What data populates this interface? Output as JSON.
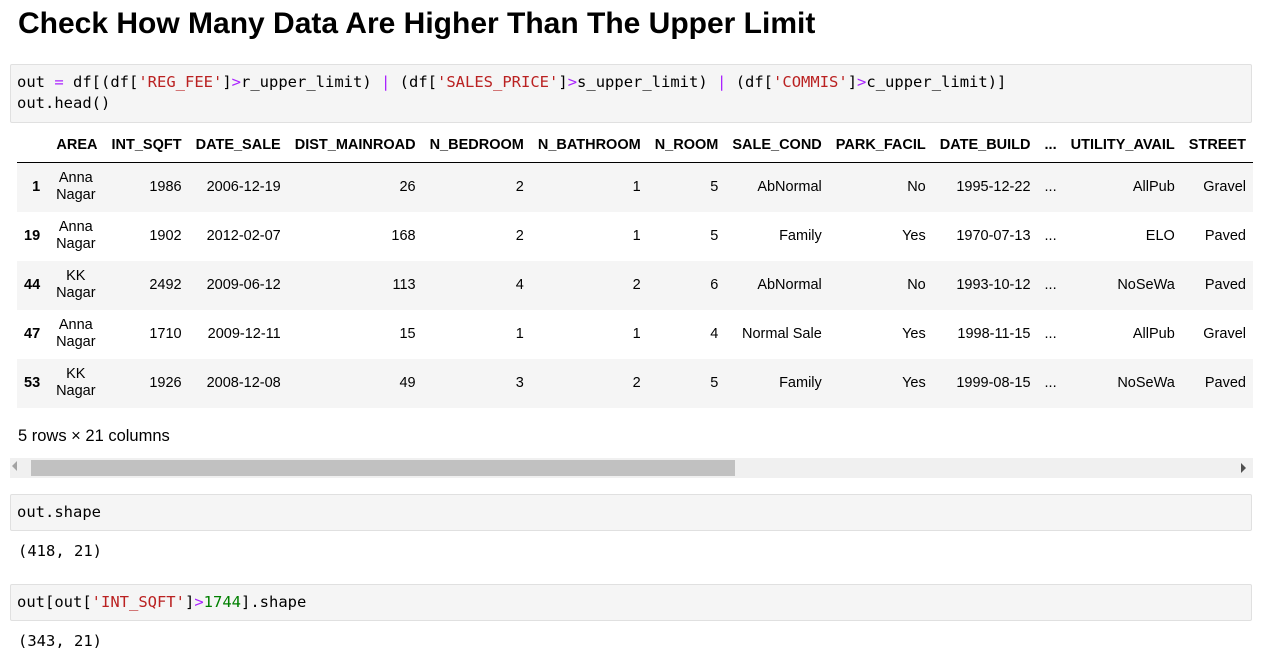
{
  "heading": "Check How Many Data Are Higher Than The Upper Limit",
  "cells": [
    {
      "code_lines": [
        [
          {
            "t": "out ",
            "k": "plain"
          },
          {
            "t": "=",
            "k": "op"
          },
          {
            "t": " df[(df[",
            "k": "plain"
          },
          {
            "t": "'REG_FEE'",
            "k": "str"
          },
          {
            "t": "]",
            "k": "plain"
          },
          {
            "t": ">",
            "k": "op"
          },
          {
            "t": "r_upper_limit) ",
            "k": "plain"
          },
          {
            "t": "|",
            "k": "op"
          },
          {
            "t": " (df[",
            "k": "plain"
          },
          {
            "t": "'SALES_PRICE'",
            "k": "str"
          },
          {
            "t": "]",
            "k": "plain"
          },
          {
            "t": ">",
            "k": "op"
          },
          {
            "t": "s_upper_limit) ",
            "k": "plain"
          },
          {
            "t": "|",
            "k": "op"
          },
          {
            "t": " (df[",
            "k": "plain"
          },
          {
            "t": "'COMMIS'",
            "k": "str"
          },
          {
            "t": "]",
            "k": "plain"
          },
          {
            "t": ">",
            "k": "op"
          },
          {
            "t": "c_upper_limit)]",
            "k": "plain"
          }
        ],
        [
          {
            "t": "out.head()",
            "k": "plain"
          }
        ]
      ]
    },
    {
      "code_lines": [
        [
          {
            "t": "out.shape",
            "k": "plain"
          }
        ]
      ],
      "output": "(418, 21)"
    },
    {
      "code_lines": [
        [
          {
            "t": "out[out[",
            "k": "plain"
          },
          {
            "t": "'INT_SQFT'",
            "k": "str"
          },
          {
            "t": "]",
            "k": "plain"
          },
          {
            "t": ">",
            "k": "op"
          },
          {
            "t": "1744",
            "k": "num"
          },
          {
            "t": "].shape",
            "k": "plain"
          }
        ]
      ],
      "output": "(343, 21)"
    }
  ],
  "table": {
    "columns": [
      "",
      "AREA",
      "INT_SQFT",
      "DATE_SALE",
      "DIST_MAINROAD",
      "N_BEDROOM",
      "N_BATHROOM",
      "N_ROOM",
      "SALE_COND",
      "PARK_FACIL",
      "DATE_BUILD",
      "...",
      "UTILITY_AVAIL",
      "STREET"
    ],
    "rows": [
      {
        "index": "1",
        "cells": [
          "Anna Nagar",
          "1986",
          "2006-12-19",
          "26",
          "2",
          "1",
          "5",
          "AbNormal",
          "No",
          "1995-12-22",
          "...",
          "AllPub",
          "Gravel"
        ]
      },
      {
        "index": "19",
        "cells": [
          "Anna Nagar",
          "1902",
          "2012-02-07",
          "168",
          "2",
          "1",
          "5",
          "Family",
          "Yes",
          "1970-07-13",
          "...",
          "ELO",
          "Paved"
        ]
      },
      {
        "index": "44",
        "cells": [
          "KK Nagar",
          "2492",
          "2009-06-12",
          "113",
          "4",
          "2",
          "6",
          "AbNormal",
          "No",
          "1993-10-12",
          "...",
          "NoSeWa",
          "Paved"
        ]
      },
      {
        "index": "47",
        "cells": [
          "Anna Nagar",
          "1710",
          "2009-12-11",
          "15",
          "1",
          "1",
          "4",
          "Normal Sale",
          "Yes",
          "1998-11-15",
          "...",
          "AllPub",
          "Gravel"
        ]
      },
      {
        "index": "53",
        "cells": [
          "KK Nagar",
          "1926",
          "2008-12-08",
          "49",
          "3",
          "2",
          "5",
          "Family",
          "Yes",
          "1999-08-15",
          "...",
          "NoSeWa",
          "Paved"
        ]
      }
    ],
    "shape_note": "5 rows × 21 columns"
  },
  "colors": {
    "operator": "#aa22ff",
    "string": "#ba2121",
    "number": "#008000",
    "cell_bg": "#f5f5f5",
    "stripe": "#f5f5f5"
  }
}
